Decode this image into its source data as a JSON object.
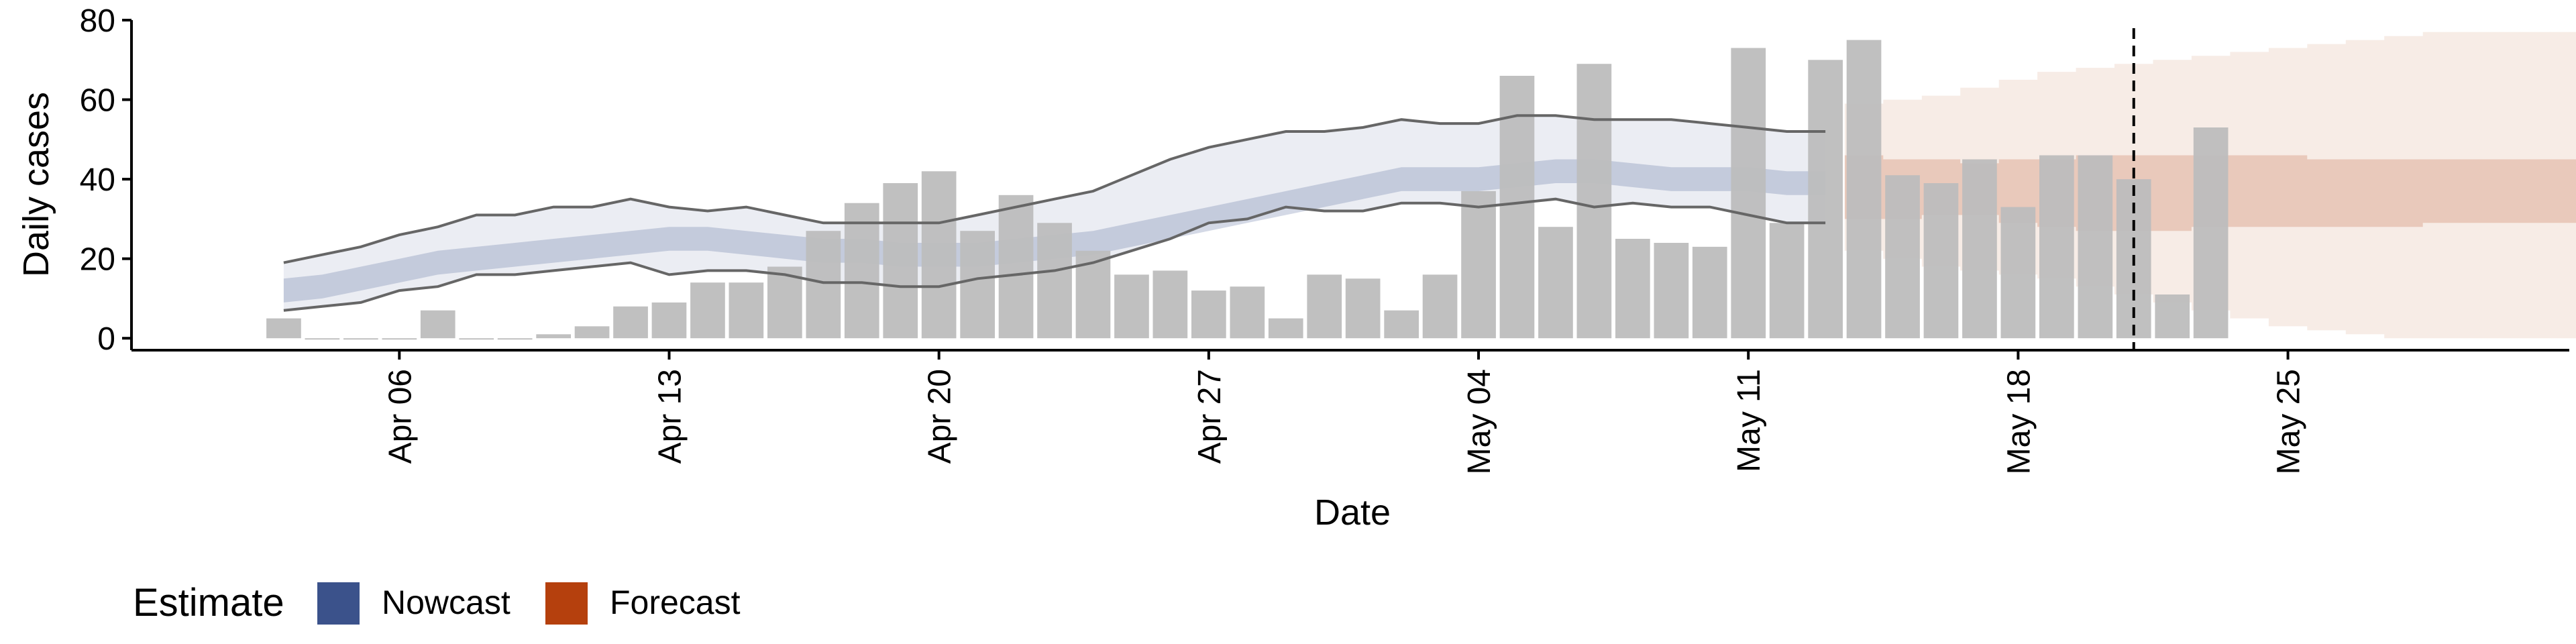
{
  "chart_data": {
    "type": "bar",
    "xlabel": "Date",
    "ylabel": "Daily cases",
    "ylim": [
      -3,
      80
    ],
    "yticks": [
      0,
      20,
      40,
      60,
      80
    ],
    "x_tick_labels": [
      {
        "label": "Apr 06",
        "day": 5
      },
      {
        "label": "Apr 13",
        "day": 12
      },
      {
        "label": "Apr 20",
        "day": 19
      },
      {
        "label": "Apr 27",
        "day": 26
      },
      {
        "label": "May 04",
        "day": 33
      },
      {
        "label": "May 11",
        "day": 40
      },
      {
        "label": "May 18",
        "day": 47
      },
      {
        "label": "May 25",
        "day": 54
      }
    ],
    "x_range_days": [
      -1.95,
      61.3
    ],
    "date_start": "Apr 01",
    "reference_line_day": 50.0,
    "bars": {
      "start_day": 2,
      "values": [
        5,
        0,
        0,
        0,
        7,
        0,
        0,
        1,
        3,
        8,
        9,
        14,
        14,
        18,
        27,
        34,
        39,
        42,
        27,
        36,
        29,
        22,
        16,
        17,
        12,
        13,
        5,
        16,
        15,
        7,
        16,
        37,
        66,
        28,
        69,
        25,
        24,
        23,
        73,
        29,
        70,
        75,
        41,
        39,
        45,
        33,
        46,
        46,
        40,
        11,
        53
      ],
      "color": "#bdbdbd"
    },
    "nowcast": {
      "start_day": 2,
      "end_day": 42,
      "color": "#3b528b",
      "median": [
        12,
        13,
        15,
        17,
        19,
        20,
        21,
        22,
        23,
        24,
        25,
        25,
        24,
        23,
        22,
        22,
        21,
        21,
        21,
        22,
        23,
        24,
        26,
        28,
        30,
        32,
        34,
        36,
        38,
        40,
        40,
        40,
        41,
        42,
        42,
        41,
        40,
        40,
        40,
        39,
        39
      ],
      "inner_lower": [
        9,
        10,
        12,
        14,
        16,
        17,
        18,
        19,
        20,
        21,
        22,
        22,
        21,
        20,
        19,
        19,
        18,
        18,
        18,
        19,
        20,
        21,
        23,
        25,
        27,
        29,
        31,
        33,
        35,
        37,
        37,
        37,
        38,
        39,
        39,
        38,
        37,
        37,
        37,
        36,
        36
      ],
      "inner_upper": [
        15,
        16,
        18,
        20,
        22,
        23,
        24,
        25,
        26,
        27,
        28,
        28,
        27,
        26,
        25,
        25,
        24,
        24,
        24,
        25,
        26,
        27,
        29,
        31,
        33,
        35,
        37,
        39,
        41,
        43,
        43,
        43,
        44,
        45,
        45,
        44,
        43,
        43,
        43,
        42,
        42
      ],
      "outer_lower": [
        7,
        8,
        9,
        12,
        13,
        16,
        16,
        17,
        18,
        19,
        16,
        17,
        17,
        16,
        14,
        14,
        13,
        13,
        15,
        16,
        17,
        19,
        22,
        25,
        29,
        30,
        33,
        32,
        32,
        34,
        34,
        33,
        34,
        35,
        33,
        34,
        33,
        33,
        31,
        29,
        29
      ],
      "outer_upper": [
        19,
        21,
        23,
        26,
        28,
        31,
        31,
        33,
        33,
        35,
        33,
        32,
        33,
        31,
        29,
        29,
        29,
        29,
        31,
        33,
        35,
        37,
        41,
        45,
        48,
        50,
        52,
        52,
        53,
        55,
        54,
        54,
        56,
        56,
        55,
        55,
        55,
        54,
        53,
        52,
        52
      ]
    },
    "forecast": {
      "start_day": 43,
      "end_day": 61,
      "color": "#b5400d",
      "inner_lower": [
        30,
        30,
        31,
        31,
        29,
        28,
        27,
        27,
        27,
        28,
        28,
        28,
        28,
        28,
        28,
        29,
        29,
        29,
        29
      ],
      "inner_upper": [
        46,
        45,
        45,
        44,
        45,
        45,
        46,
        46,
        46,
        46,
        46,
        46,
        45,
        45,
        45,
        45,
        45,
        45,
        45
      ],
      "outer_lower": [
        22,
        20,
        18,
        17,
        16,
        15,
        13,
        11,
        9,
        7,
        5,
        3,
        2,
        1,
        0,
        0,
        0,
        0,
        0
      ],
      "outer_upper": [
        59,
        60,
        61,
        63,
        65,
        67,
        68,
        69,
        70,
        71,
        72,
        73,
        74,
        75,
        76,
        77,
        77,
        77,
        77
      ]
    },
    "legend": {
      "title": "Estimate",
      "position": "bottom",
      "entries": [
        {
          "label": "Nowcast",
          "color": "#3b528b"
        },
        {
          "label": "Forecast",
          "color": "#b5400d"
        }
      ]
    }
  }
}
